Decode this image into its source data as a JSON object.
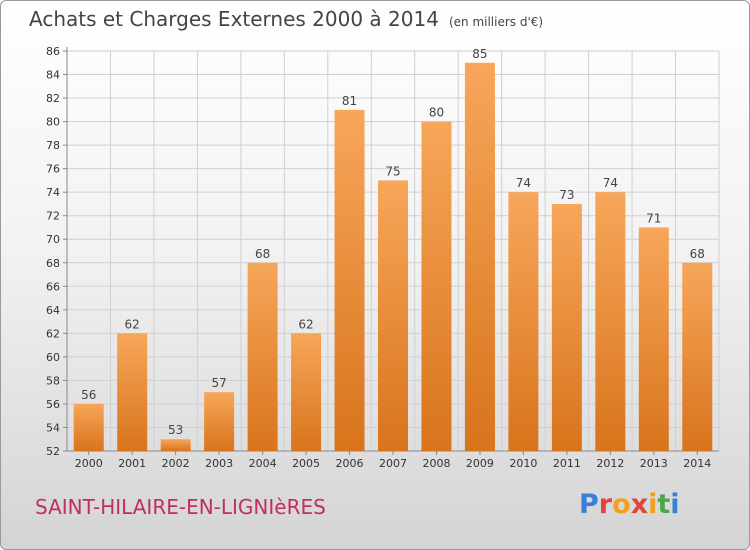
{
  "header": {
    "title": "Achats et Charges Externes 2000 à 2014",
    "subtitle": "(en milliers d'€)"
  },
  "footer": {
    "town": "SAINT-HILAIRE-EN-LIGNIèRES",
    "logo": "Proxiti",
    "logo_colors": [
      "#3a7fd6",
      "#e0453a",
      "#f0a01e",
      "#e0453a",
      "#f0a01e",
      "#4aa84a",
      "#3a7fd6"
    ]
  },
  "chart_data": {
    "type": "bar",
    "categories": [
      "2000",
      "2001",
      "2002",
      "2003",
      "2004",
      "2005",
      "2006",
      "2007",
      "2008",
      "2009",
      "2010",
      "2011",
      "2012",
      "2013",
      "2014"
    ],
    "values": [
      56,
      62,
      53,
      57,
      68,
      62,
      81,
      75,
      80,
      85,
      74,
      73,
      74,
      71,
      68
    ],
    "ylim": [
      52,
      86
    ],
    "yticks": [
      52,
      54,
      56,
      58,
      60,
      62,
      64,
      66,
      68,
      70,
      72,
      74,
      76,
      78,
      80,
      82,
      84,
      86
    ],
    "grid": true,
    "bar_color_top": "#f7a65a",
    "bar_color_bottom": "#d8741c"
  }
}
